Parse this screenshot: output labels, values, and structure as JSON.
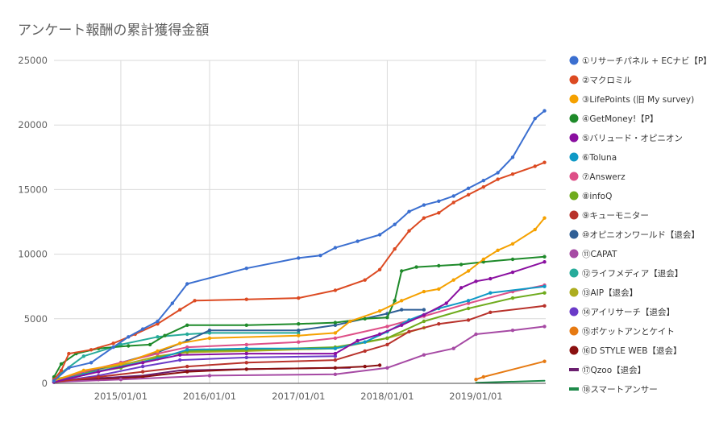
{
  "chart_data": {
    "type": "line",
    "title": "アンケート報酬の累計獲得金額",
    "xlabel": "",
    "ylabel": "",
    "xlim": [
      "2014-04-01",
      "2019-10-15"
    ],
    "ylim": [
      0,
      25000
    ],
    "y_ticks": [
      "0",
      "5000",
      "10000",
      "15000",
      "20000",
      "25000"
    ],
    "x_ticks": [
      {
        "date": "2015-01-01",
        "label": "2015/01/01"
      },
      {
        "date": "2016-01-01",
        "label": "2016/01/01"
      },
      {
        "date": "2017-01-01",
        "label": "2017/01/01"
      },
      {
        "date": "2018-01-01",
        "label": "2018/01/01"
      },
      {
        "date": "2019-01-01",
        "label": "2019/01/01"
      }
    ],
    "grid": true,
    "legend": "right",
    "series": [
      {
        "name": "①リサーチパネル + ECナビ【P】",
        "color": "#3b6fd0",
        "markers": true,
        "points": [
          [
            "2014-04-01",
            200
          ],
          [
            "2014-06-01",
            1200
          ],
          [
            "2014-09-01",
            1600
          ],
          [
            "2014-12-01",
            2800
          ],
          [
            "2015-02-01",
            3600
          ],
          [
            "2015-04-01",
            4200
          ],
          [
            "2015-06-01",
            4800
          ],
          [
            "2015-08-01",
            6200
          ],
          [
            "2015-10-01",
            7700
          ],
          [
            "2016-06-01",
            8900
          ],
          [
            "2017-01-01",
            9700
          ],
          [
            "2017-04-01",
            9900
          ],
          [
            "2017-06-01",
            10500
          ],
          [
            "2017-09-01",
            11000
          ],
          [
            "2017-12-01",
            11500
          ],
          [
            "2018-02-01",
            12300
          ],
          [
            "2018-04-01",
            13300
          ],
          [
            "2018-06-01",
            13800
          ],
          [
            "2018-08-01",
            14100
          ],
          [
            "2018-10-01",
            14500
          ],
          [
            "2018-12-01",
            15100
          ],
          [
            "2019-02-01",
            15700
          ],
          [
            "2019-04-01",
            16300
          ],
          [
            "2019-06-01",
            17500
          ],
          [
            "2019-09-01",
            20500
          ],
          [
            "2019-10-10",
            21100
          ]
        ]
      },
      {
        "name": "②マクロミル",
        "color": "#dc4a22",
        "markers": true,
        "points": [
          [
            "2014-04-01",
            300
          ],
          [
            "2014-05-01",
            1000
          ],
          [
            "2014-06-01",
            2300
          ],
          [
            "2014-09-01",
            2600
          ],
          [
            "2014-12-01",
            3100
          ],
          [
            "2015-03-01",
            3800
          ],
          [
            "2015-06-01",
            4600
          ],
          [
            "2015-09-01",
            5700
          ],
          [
            "2015-11-01",
            6400
          ],
          [
            "2016-06-01",
            6500
          ],
          [
            "2017-01-01",
            6600
          ],
          [
            "2017-06-01",
            7200
          ],
          [
            "2017-10-01",
            8000
          ],
          [
            "2017-12-01",
            8800
          ],
          [
            "2018-02-01",
            10400
          ],
          [
            "2018-04-01",
            11800
          ],
          [
            "2018-06-01",
            12800
          ],
          [
            "2018-08-01",
            13200
          ],
          [
            "2018-10-01",
            14000
          ],
          [
            "2018-12-01",
            14600
          ],
          [
            "2019-02-01",
            15200
          ],
          [
            "2019-04-01",
            15800
          ],
          [
            "2019-06-01",
            16200
          ],
          [
            "2019-09-01",
            16800
          ],
          [
            "2019-10-10",
            17100
          ]
        ]
      },
      {
        "name": "③LifePoints (旧 My survey)",
        "color": "#f5a100",
        "markers": true,
        "points": [
          [
            "2014-04-01",
            200
          ],
          [
            "2014-08-01",
            1000
          ],
          [
            "2015-01-01",
            1500
          ],
          [
            "2015-06-01",
            2500
          ],
          [
            "2015-09-01",
            3100
          ],
          [
            "2016-01-01",
            3500
          ],
          [
            "2017-01-01",
            3700
          ],
          [
            "2017-06-01",
            3900
          ],
          [
            "2017-08-01",
            4800
          ],
          [
            "2017-12-01",
            5600
          ],
          [
            "2018-03-01",
            6400
          ],
          [
            "2018-06-01",
            7100
          ],
          [
            "2018-08-01",
            7300
          ],
          [
            "2018-10-01",
            8000
          ],
          [
            "2018-12-01",
            8700
          ],
          [
            "2019-02-01",
            9600
          ],
          [
            "2019-04-01",
            10300
          ],
          [
            "2019-06-01",
            10800
          ],
          [
            "2019-09-01",
            11900
          ],
          [
            "2019-10-10",
            12800
          ]
        ]
      },
      {
        "name": "④GetMoney!【P】",
        "color": "#1e8a2a",
        "markers": true,
        "points": [
          [
            "2014-04-01",
            500
          ],
          [
            "2014-05-01",
            1500
          ],
          [
            "2014-07-01",
            2300
          ],
          [
            "2014-10-01",
            2700
          ],
          [
            "2015-02-01",
            2900
          ],
          [
            "2015-05-01",
            3000
          ],
          [
            "2015-07-01",
            3700
          ],
          [
            "2015-10-01",
            4500
          ],
          [
            "2016-06-01",
            4500
          ],
          [
            "2017-01-01",
            4600
          ],
          [
            "2017-06-01",
            4700
          ],
          [
            "2017-10-01",
            5000
          ],
          [
            "2018-01-01",
            5100
          ],
          [
            "2018-02-01",
            6400
          ],
          [
            "2018-03-01",
            8700
          ],
          [
            "2018-05-01",
            9000
          ],
          [
            "2018-08-01",
            9100
          ],
          [
            "2018-11-01",
            9200
          ],
          [
            "2019-02-01",
            9400
          ],
          [
            "2019-06-01",
            9600
          ],
          [
            "2019-10-10",
            9800
          ]
        ]
      },
      {
        "name": "⑤バリュード・オピニオン",
        "color": "#8a0fa0",
        "markers": true,
        "points": [
          [
            "2014-04-01",
            100
          ],
          [
            "2014-10-01",
            900
          ],
          [
            "2015-04-01",
            1600
          ],
          [
            "2015-09-01",
            2200
          ],
          [
            "2016-06-01",
            2300
          ],
          [
            "2017-06-01",
            2300
          ],
          [
            "2017-09-01",
            3300
          ],
          [
            "2017-12-01",
            3800
          ],
          [
            "2018-03-01",
            4500
          ],
          [
            "2018-06-01",
            5300
          ],
          [
            "2018-09-01",
            6200
          ],
          [
            "2018-11-01",
            7400
          ],
          [
            "2019-01-01",
            7900
          ],
          [
            "2019-03-01",
            8100
          ],
          [
            "2019-06-01",
            8600
          ],
          [
            "2019-10-10",
            9400
          ]
        ]
      },
      {
        "name": "⑥Toluna",
        "color": "#0f99c6",
        "markers": true,
        "points": [
          [
            "2014-04-01",
            100
          ],
          [
            "2014-08-01",
            700
          ],
          [
            "2015-01-01",
            1300
          ],
          [
            "2015-06-01",
            1900
          ],
          [
            "2015-10-01",
            2600
          ],
          [
            "2016-06-01",
            2700
          ],
          [
            "2017-06-01",
            2700
          ],
          [
            "2017-10-01",
            3200
          ],
          [
            "2018-01-01",
            4000
          ],
          [
            "2018-04-01",
            4900
          ],
          [
            "2018-08-01",
            5800
          ],
          [
            "2018-12-01",
            6400
          ],
          [
            "2019-03-01",
            7000
          ],
          [
            "2019-10-10",
            7500
          ]
        ]
      },
      {
        "name": "⑦Answerz",
        "color": "#de4f87",
        "markers": true,
        "points": [
          [
            "2014-04-01",
            200
          ],
          [
            "2014-08-01",
            900
          ],
          [
            "2015-01-01",
            1600
          ],
          [
            "2015-06-01",
            2300
          ],
          [
            "2015-10-01",
            2800
          ],
          [
            "2016-06-01",
            3000
          ],
          [
            "2017-01-01",
            3200
          ],
          [
            "2017-06-01",
            3500
          ],
          [
            "2018-01-01",
            4400
          ],
          [
            "2018-06-01",
            5200
          ],
          [
            "2018-12-01",
            6200
          ],
          [
            "2019-06-01",
            7100
          ],
          [
            "2019-10-10",
            7600
          ]
        ]
      },
      {
        "name": "⑧infoQ",
        "color": "#6fab1d",
        "markers": true,
        "points": [
          [
            "2014-04-01",
            300
          ],
          [
            "2014-08-01",
            800
          ],
          [
            "2015-01-01",
            1200
          ],
          [
            "2015-06-01",
            2000
          ],
          [
            "2015-10-01",
            2500
          ],
          [
            "2016-06-01",
            2600
          ],
          [
            "2017-06-01",
            2800
          ],
          [
            "2018-01-01",
            3500
          ],
          [
            "2018-06-01",
            4800
          ],
          [
            "2018-12-01",
            5800
          ],
          [
            "2019-06-01",
            6600
          ],
          [
            "2019-10-10",
            7000
          ]
        ]
      },
      {
        "name": "⑨キューモニター",
        "color": "#b8322b",
        "markers": true,
        "points": [
          [
            "2014-04-01",
            100
          ],
          [
            "2014-10-01",
            500
          ],
          [
            "2015-04-01",
            900
          ],
          [
            "2015-10-01",
            1300
          ],
          [
            "2016-06-01",
            1600
          ],
          [
            "2017-06-01",
            1800
          ],
          [
            "2017-10-01",
            2500
          ],
          [
            "2018-01-01",
            3000
          ],
          [
            "2018-04-01",
            4000
          ],
          [
            "2018-08-01",
            4600
          ],
          [
            "2018-12-01",
            4900
          ],
          [
            "2019-03-01",
            5500
          ],
          [
            "2019-10-10",
            6000
          ]
        ]
      },
      {
        "name": "⑩オピニオンワールド【退会】",
        "color": "#2f5f96",
        "markers": true,
        "points": [
          [
            "2014-04-01",
            100
          ],
          [
            "2014-08-01",
            800
          ],
          [
            "2015-01-01",
            1600
          ],
          [
            "2015-06-01",
            2400
          ],
          [
            "2015-10-01",
            3300
          ],
          [
            "2016-01-01",
            4100
          ],
          [
            "2017-01-01",
            4100
          ],
          [
            "2017-06-01",
            4500
          ],
          [
            "2018-01-01",
            5400
          ],
          [
            "2018-03-01",
            5700
          ],
          [
            "2018-06-01",
            5700
          ]
        ]
      },
      {
        "name": "⑪CAPAT",
        "color": "#a64aa4",
        "markers": true,
        "points": [
          [
            "2014-04-01",
            100
          ],
          [
            "2015-01-01",
            300
          ],
          [
            "2016-01-01",
            600
          ],
          [
            "2017-06-01",
            700
          ],
          [
            "2018-01-01",
            1200
          ],
          [
            "2018-06-01",
            2200
          ],
          [
            "2018-10-01",
            2700
          ],
          [
            "2019-01-01",
            3800
          ],
          [
            "2019-06-01",
            4100
          ],
          [
            "2019-10-10",
            4400
          ]
        ]
      },
      {
        "name": "⑫ライフメディア【退会】",
        "color": "#26ab9a",
        "markers": true,
        "points": [
          [
            "2014-04-01",
            400
          ],
          [
            "2014-08-01",
            2100
          ],
          [
            "2015-01-01",
            3000
          ],
          [
            "2015-06-01",
            3600
          ],
          [
            "2015-10-01",
            3800
          ],
          [
            "2016-01-01",
            3900
          ],
          [
            "2017-01-01",
            3900
          ]
        ]
      },
      {
        "name": "⑬AIP【退会】",
        "color": "#adad1f",
        "markers": true,
        "points": [
          [
            "2014-04-01",
            200
          ],
          [
            "2014-08-01",
            900
          ],
          [
            "2015-01-01",
            1400
          ],
          [
            "2015-06-01",
            2100
          ],
          [
            "2015-10-01",
            2400
          ],
          [
            "2016-06-01",
            2500
          ],
          [
            "2017-06-01",
            2700
          ],
          [
            "2018-01-01",
            3500
          ],
          [
            "2018-06-01",
            4300
          ]
        ]
      },
      {
        "name": "⑭アイリサーチ【退会】",
        "color": "#6a3ac8",
        "markers": true,
        "points": [
          [
            "2014-04-01",
            100
          ],
          [
            "2014-10-01",
            600
          ],
          [
            "2015-04-01",
            1300
          ],
          [
            "2015-09-01",
            1800
          ],
          [
            "2016-06-01",
            2000
          ],
          [
            "2017-06-01",
            2100
          ]
        ]
      },
      {
        "name": "⑮ポケットアンとケイト",
        "color": "#e67a12",
        "markers": true,
        "points": [
          [
            "2019-01-01",
            300
          ],
          [
            "2019-02-01",
            500
          ],
          [
            "2019-10-10",
            1700
          ]
        ]
      },
      {
        "name": "⑯D STYLE WEB【退会】",
        "color": "#8a1010",
        "markers": true,
        "points": [
          [
            "2014-04-01",
            100
          ],
          [
            "2014-10-01",
            300
          ],
          [
            "2015-04-01",
            500
          ],
          [
            "2015-10-01",
            900
          ],
          [
            "2016-06-01",
            1100
          ],
          [
            "2017-06-01",
            1200
          ],
          [
            "2017-10-01",
            1300
          ],
          [
            "2017-12-01",
            1400
          ]
        ]
      },
      {
        "name": "⑰Qzoo【退会】",
        "color": "#6b1f6f",
        "markers": false,
        "points": [
          [
            "2014-04-01",
            100
          ],
          [
            "2014-10-01",
            400
          ],
          [
            "2015-04-01",
            600
          ],
          [
            "2015-09-01",
            1000
          ],
          [
            "2016-06-01",
            1100
          ],
          [
            "2017-06-01",
            1200
          ],
          [
            "2017-08-01",
            1200
          ]
        ]
      },
      {
        "name": "⑱スマートアンサー",
        "color": "#1e8a4a",
        "markers": false,
        "points": [
          [
            "2019-01-01",
            50
          ],
          [
            "2019-10-10",
            200
          ]
        ]
      }
    ]
  }
}
